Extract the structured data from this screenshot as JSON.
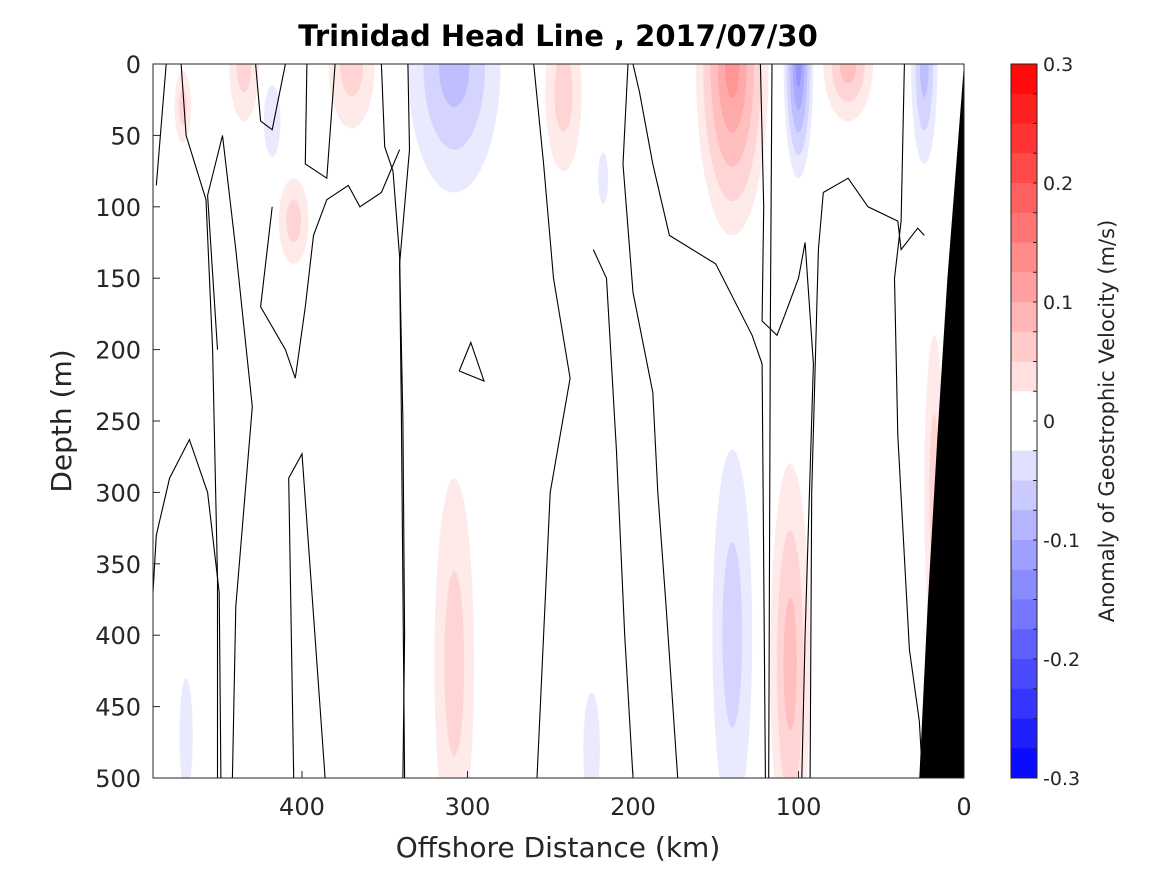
{
  "chart_data": {
    "type": "contour",
    "title": "Trinidad Head Line , 2017/07/30",
    "xlabel": "Offshore Distance (km)",
    "ylabel": "Depth (m)",
    "xlim": [
      490,
      0
    ],
    "x_reversed": true,
    "ylim": [
      0,
      500
    ],
    "y_reversed": true,
    "x_ticks": [
      400,
      300,
      200,
      100,
      0
    ],
    "y_ticks": [
      0,
      50,
      100,
      150,
      200,
      250,
      300,
      350,
      400,
      450,
      500
    ],
    "colorbar": {
      "label": "Anomaly of Geostrophic Velocity (m/s)",
      "range": [
        -0.3,
        0.3
      ],
      "step": 0.025,
      "ticks": [
        -0.3,
        -0.2,
        -0.1,
        0,
        0.1,
        0.2,
        0.3
      ],
      "tick_labels": [
        "-0.3",
        "-0.2",
        "-0.1",
        "0",
        "0.1",
        "0.2",
        "0.3"
      ],
      "negative_color": "#0000ff",
      "positive_color": "#ff0000",
      "zero_color": "#ffffff"
    },
    "bathymetry_color": "#000000",
    "bathymetry": [
      [
        0,
        0
      ],
      [
        4,
        60
      ],
      [
        10,
        150
      ],
      [
        16,
        260
      ],
      [
        22,
        380
      ],
      [
        27,
        500
      ]
    ],
    "zero_contours": [
      [
        [
          488,
          85
        ],
        [
          482,
          0
        ]
      ],
      [
        [
          473,
          0
        ],
        [
          470,
          50
        ],
        [
          458,
          95
        ],
        [
          454,
          200
        ],
        [
          451,
          360
        ],
        [
          451,
          500
        ]
      ],
      [
        [
          442,
          500
        ],
        [
          440,
          380
        ],
        [
          430,
          240
        ],
        [
          440,
          130
        ],
        [
          448,
          50
        ],
        [
          457,
          92
        ],
        [
          451,
          200
        ]
      ],
      [
        [
          428,
          0
        ],
        [
          425,
          40
        ],
        [
          418,
          46
        ],
        [
          410,
          0
        ]
      ],
      [
        [
          405,
          500
        ],
        [
          408,
          290
        ],
        [
          400,
          273
        ],
        [
          386,
          500
        ]
      ],
      [
        [
          397,
          0
        ],
        [
          398,
          70
        ],
        [
          385,
          80
        ],
        [
          380,
          0
        ]
      ],
      [
        [
          352,
          0
        ],
        [
          350,
          58
        ],
        [
          345,
          75
        ],
        [
          341,
          135
        ],
        [
          339,
          250
        ],
        [
          338,
          400
        ],
        [
          339,
          500
        ]
      ],
      [
        [
          336,
          0
        ],
        [
          335,
          60
        ],
        [
          341,
          140
        ],
        [
          340,
          240
        ],
        [
          338,
          500
        ]
      ],
      [
        [
          490,
          370
        ],
        [
          488,
          330
        ],
        [
          480,
          290
        ],
        [
          468,
          263
        ],
        [
          457,
          300
        ],
        [
          450,
          370
        ],
        [
          449,
          500
        ]
      ],
      [
        [
          418,
          100
        ],
        [
          425,
          170
        ],
        [
          410,
          200
        ],
        [
          404,
          220
        ],
        [
          398,
          170
        ],
        [
          393,
          120
        ],
        [
          385,
          95
        ],
        [
          372,
          85
        ],
        [
          365,
          100
        ],
        [
          352,
          90
        ],
        [
          341,
          60
        ]
      ],
      [
        [
          305,
          215
        ],
        [
          298,
          195
        ],
        [
          290,
          222
        ],
        [
          305,
          215
        ]
      ],
      [
        [
          260,
          0
        ],
        [
          254,
          70
        ],
        [
          248,
          150
        ],
        [
          238,
          220
        ],
        [
          250,
          300
        ],
        [
          258,
          500
        ]
      ],
      [
        [
          224,
          130
        ],
        [
          216,
          150
        ],
        [
          210,
          270
        ],
        [
          205,
          400
        ],
        [
          200,
          500
        ]
      ],
      [
        [
          203,
          0
        ],
        [
          206,
          70
        ],
        [
          200,
          160
        ],
        [
          188,
          230
        ],
        [
          185,
          300
        ],
        [
          180,
          380
        ],
        [
          173,
          500
        ]
      ],
      [
        [
          200,
          0
        ],
        [
          196,
          20
        ],
        [
          188,
          70
        ],
        [
          178,
          120
        ],
        [
          150,
          140
        ],
        [
          128,
          190
        ],
        [
          122,
          210
        ],
        [
          120,
          500
        ]
      ],
      [
        [
          123,
          0
        ],
        [
          121,
          100
        ],
        [
          122,
          180
        ],
        [
          113,
          190
        ],
        [
          108,
          175
        ],
        [
          100,
          150
        ],
        [
          96,
          125
        ],
        [
          91,
          210
        ],
        [
          96,
          400
        ],
        [
          98,
          500
        ]
      ],
      [
        [
          116,
          0
        ],
        [
          117,
          175
        ],
        [
          118,
          500
        ]
      ],
      [
        [
          93,
          500
        ],
        [
          92,
          300
        ],
        [
          88,
          130
        ],
        [
          85,
          90
        ],
        [
          70,
          80
        ],
        [
          58,
          100
        ],
        [
          40,
          110
        ],
        [
          38,
          130
        ],
        [
          28,
          115
        ],
        [
          24,
          120
        ]
      ],
      [
        [
          36,
          0
        ],
        [
          38,
          110
        ],
        [
          42,
          150
        ],
        [
          40,
          260
        ],
        [
          33,
          410
        ],
        [
          27,
          460
        ],
        [
          25,
          500
        ]
      ]
    ],
    "negative_anomalies": [
      {
        "x": 308,
        "depth": 0,
        "value": -0.07,
        "rx": 28,
        "ry": 90
      },
      {
        "x": 100,
        "depth": 0,
        "value": -0.12,
        "rx": 9,
        "ry": 80
      },
      {
        "x": 24,
        "depth": 0,
        "value": -0.07,
        "rx": 8,
        "ry": 70
      },
      {
        "x": 218,
        "depth": 80,
        "value": -0.03,
        "rx": 3,
        "ry": 18
      },
      {
        "x": 140,
        "depth": 400,
        "value": -0.06,
        "rx": 12,
        "ry": 130
      },
      {
        "x": 225,
        "depth": 480,
        "value": -0.03,
        "rx": 5,
        "ry": 40
      },
      {
        "x": 470,
        "depth": 470,
        "value": -0.03,
        "rx": 4,
        "ry": 40
      },
      {
        "x": 418,
        "depth": 40,
        "value": -0.03,
        "rx": 5,
        "ry": 25
      }
    ],
    "positive_anomalies": [
      {
        "x": 140,
        "depth": 0,
        "value": 0.12,
        "rx": 22,
        "ry": 120
      },
      {
        "x": 370,
        "depth": 0,
        "value": 0.06,
        "rx": 14,
        "ry": 45
      },
      {
        "x": 435,
        "depth": 0,
        "value": 0.06,
        "rx": 9,
        "ry": 40
      },
      {
        "x": 70,
        "depth": 0,
        "value": 0.08,
        "rx": 15,
        "ry": 40
      },
      {
        "x": 242,
        "depth": 20,
        "value": 0.06,
        "rx": 11,
        "ry": 55
      },
      {
        "x": 472,
        "depth": 30,
        "value": 0.04,
        "rx": 5,
        "ry": 25
      },
      {
        "x": 405,
        "depth": 110,
        "value": 0.04,
        "rx": 9,
        "ry": 30
      },
      {
        "x": 105,
        "depth": 420,
        "value": 0.07,
        "rx": 12,
        "ry": 140
      },
      {
        "x": 308,
        "depth": 420,
        "value": 0.04,
        "rx": 12,
        "ry": 130
      },
      {
        "x": 18,
        "depth": 300,
        "value": 0.04,
        "rx": 6,
        "ry": 110
      }
    ]
  }
}
